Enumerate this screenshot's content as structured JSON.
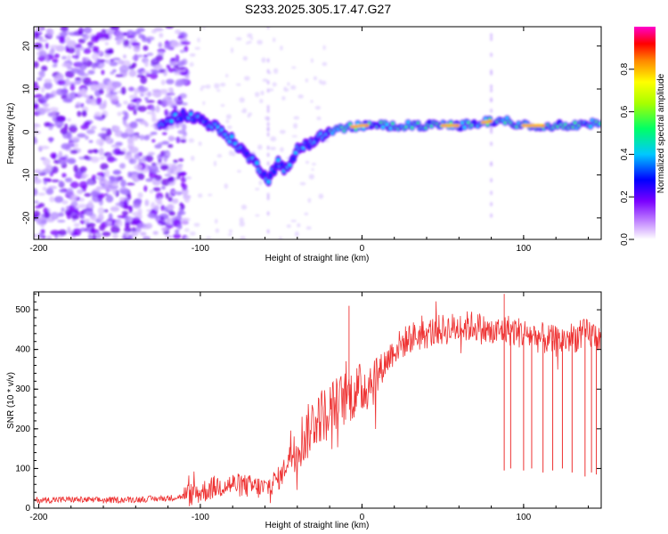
{
  "title": "S233.2025.305.17.47.G27",
  "chart_data": [
    {
      "type": "heatmap",
      "xlabel": "Height of straight line (km)",
      "ylabel": "Frequency (Hz)",
      "xlim": [
        -203,
        148
      ],
      "ylim": [
        -25,
        24.5
      ],
      "xticks": [
        -200,
        -100,
        0,
        100
      ],
      "yticks": [
        -20,
        -10,
        0,
        10,
        20
      ],
      "xtick_labels": [
        "-200",
        "-100",
        "0",
        "100"
      ],
      "ytick_labels": [
        "-20",
        "-10",
        "0",
        "10",
        "20"
      ],
      "ridge": [
        [
          -120,
          3
        ],
        [
          -110,
          4
        ],
        [
          -100,
          3
        ],
        [
          -90,
          1
        ],
        [
          -80,
          -2
        ],
        [
          -72,
          -5
        ],
        [
          -64,
          -8
        ],
        [
          -58,
          -11
        ],
        [
          -52,
          -7
        ],
        [
          -46,
          -9
        ],
        [
          -40,
          -4
        ],
        [
          -30,
          -2
        ],
        [
          -20,
          0
        ],
        [
          -10,
          1
        ],
        [
          0,
          1.5
        ],
        [
          20,
          1.5
        ],
        [
          40,
          1.5
        ],
        [
          60,
          1.5
        ],
        [
          80,
          2.5
        ],
        [
          90,
          2.5
        ],
        [
          100,
          1.5
        ],
        [
          120,
          1.5
        ],
        [
          148,
          2
        ]
      ],
      "colorbar": {
        "label": "Normalized spectral amplitude",
        "range": [
          0,
          1
        ],
        "ticks": [
          0.0,
          0.2,
          0.4,
          0.6,
          0.8
        ],
        "tick_labels": [
          "0.0",
          "0.2",
          "0.4",
          "0.6",
          "0.8"
        ]
      }
    },
    {
      "type": "line",
      "xlabel": "Height of straight line (km)",
      "ylabel": "SNR (10 * v/v)",
      "xlim": [
        -203,
        148
      ],
      "ylim": [
        0,
        545
      ],
      "xticks": [
        -200,
        -100,
        0,
        100
      ],
      "yticks": [
        0,
        100,
        200,
        300,
        400,
        500
      ],
      "xtick_labels": [
        "-200",
        "-100",
        "0",
        "100"
      ],
      "ytick_labels": [
        "0",
        "100",
        "200",
        "300",
        "400",
        "500"
      ],
      "color": "#ee3333",
      "series": [
        {
          "name": "SNR",
          "x": [
            -203,
            -180,
            -160,
            -140,
            -120,
            -110,
            -100,
            -90,
            -80,
            -70,
            -60,
            -50,
            -42,
            -35,
            -30,
            -20,
            -10,
            0,
            10,
            20,
            30,
            40,
            50,
            60,
            70,
            80,
            90,
            100,
            110,
            120,
            130,
            140,
            148
          ],
          "values": [
            20,
            22,
            20,
            22,
            25,
            30,
            40,
            55,
            60,
            55,
            50,
            80,
            160,
            180,
            220,
            250,
            280,
            300,
            340,
            400,
            430,
            440,
            450,
            455,
            460,
            440,
            450,
            440,
            430,
            420,
            430,
            440,
            430
          ]
        }
      ],
      "spikes": [
        [
          -8,
          510
        ],
        [
          88,
          540
        ]
      ],
      "dropouts": [
        [
          88,
          95
        ],
        [
          92,
          100
        ],
        [
          100,
          95
        ],
        [
          105,
          100
        ],
        [
          112,
          90
        ],
        [
          118,
          95
        ],
        [
          124,
          100
        ],
        [
          130,
          90
        ],
        [
          138,
          80
        ],
        [
          142,
          90
        ],
        [
          145,
          85
        ]
      ]
    }
  ]
}
